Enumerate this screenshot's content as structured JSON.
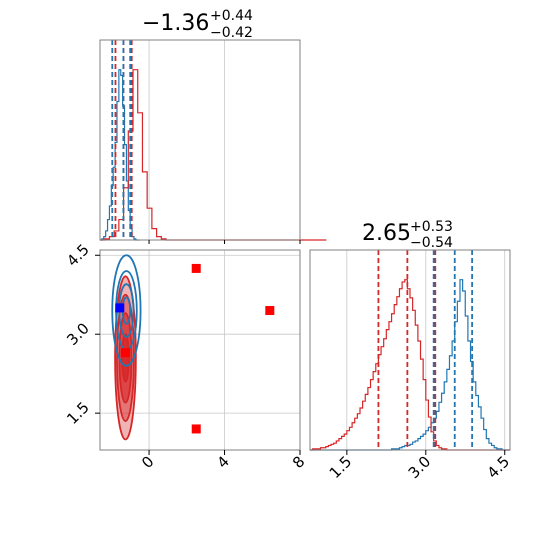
{
  "chart_data": [
    {
      "type": "histogram",
      "panel": "marginal-x",
      "title": "−1.36",
      "title_sup": "+0.44",
      "title_sub": "−0.42",
      "xlim": [
        -2.6,
        8
      ],
      "grid": true,
      "quantile_lines": {
        "red": [
          -1.78,
          -1.36,
          -0.92
        ],
        "blue": [
          -1.95,
          -1.36,
          -1.0
        ]
      },
      "series": [
        {
          "color": "#1f77b4",
          "bin_start": -2.6,
          "bin_width": 0.1,
          "counts": [
            0,
            1,
            3,
            8,
            18,
            30,
            48,
            64,
            86,
            122,
            150,
            145,
            118,
            84,
            52,
            26,
            10,
            3,
            1,
            0,
            0
          ]
        },
        {
          "color": "#d62728",
          "bin_start": -2.6,
          "bin_width": 0.25,
          "counts": [
            0,
            1,
            3,
            8,
            18,
            46,
            96,
            150,
            112,
            60,
            28,
            10,
            3,
            1,
            0,
            0,
            0,
            0,
            0,
            0,
            0,
            0,
            0,
            0,
            0,
            0,
            0,
            0,
            0,
            0,
            0,
            0,
            0,
            0,
            0,
            0,
            0,
            0,
            0,
            0,
            0,
            0,
            0,
            0,
            0,
            0,
            0,
            0
          ]
        }
      ]
    },
    {
      "type": "histogram",
      "panel": "marginal-y",
      "title": "2.65",
      "title_sup": "+0.53",
      "title_sub": "−0.54",
      "xlim": [
        0.8,
        4.6
      ],
      "xticks": [
        "1.5",
        "3.0",
        "4.5"
      ],
      "grid": true,
      "quantile_lines": {
        "red": [
          2.1,
          2.65,
          3.18
        ],
        "blue": [
          3.15,
          3.55,
          3.88
        ]
      },
      "series": [
        {
          "color": "#1f77b4",
          "bin_start": 0.8,
          "bin_width": 0.05,
          "counts": [
            0,
            0,
            0,
            0,
            0,
            0,
            0,
            0,
            0,
            0,
            0,
            0,
            0,
            0,
            0,
            0,
            0,
            0,
            0,
            0,
            0,
            0,
            0,
            0,
            0,
            0,
            0,
            0,
            0,
            0,
            0,
            1,
            1,
            1,
            2,
            3,
            4,
            4,
            5,
            7,
            8,
            10,
            12,
            14,
            17,
            20,
            24,
            28,
            34,
            42,
            50,
            60,
            71,
            83,
            96,
            113,
            131,
            150,
            140,
            118,
            96,
            78,
            60,
            48,
            38,
            28,
            18,
            10,
            6,
            4,
            2,
            1,
            1,
            0,
            0,
            0
          ]
        },
        {
          "color": "#d62728",
          "bin_start": 0.8,
          "bin_width": 0.05,
          "counts": [
            0,
            1,
            1,
            1,
            2,
            2,
            3,
            4,
            5,
            6,
            8,
            10,
            12,
            14,
            17,
            20,
            24,
            28,
            32,
            37,
            43,
            49,
            55,
            62,
            69,
            76,
            84,
            91,
            98,
            106,
            113,
            120,
            128,
            135,
            142,
            148,
            150,
            142,
            134,
            123,
            110,
            96,
            80,
            62,
            44,
            29,
            16,
            8,
            4,
            2,
            1,
            1,
            0,
            0,
            0,
            0,
            0,
            0,
            0,
            0,
            0,
            0,
            0,
            0,
            0,
            0,
            0,
            0,
            0,
            0,
            0,
            0,
            0,
            0,
            0,
            0
          ]
        }
      ]
    },
    {
      "type": "scatter",
      "panel": "joint",
      "xlim": [
        -2.6,
        8
      ],
      "ylim": [
        0.8,
        4.6
      ],
      "xticks": [
        "0",
        "4",
        "8"
      ],
      "yticks": [
        "1.5",
        "3.0",
        "4.5"
      ],
      "grid": true,
      "contours": [
        {
          "color": "#d62728",
          "center": [
            -1.25,
            2.55
          ],
          "radii": [
            [
              0.55,
              1.55
            ],
            [
              0.45,
              1.2
            ],
            [
              0.32,
              0.85
            ],
            [
              0.18,
              0.45
            ]
          ],
          "filled": true
        },
        {
          "color": "#1f77b4",
          "center": [
            -1.2,
            3.45
          ],
          "radii": [
            [
              0.75,
              1.05
            ],
            [
              0.55,
              0.75
            ],
            [
              0.38,
              0.5
            ],
            [
              0.2,
              0.25
            ]
          ],
          "filled": false
        }
      ],
      "markers": [
        {
          "color": "#0000ff",
          "x": -1.55,
          "y": 3.5
        },
        {
          "color": "#ff0000",
          "x": -1.25,
          "y": 2.65
        },
        {
          "color": "#ff0000",
          "x": 2.5,
          "y": 4.25
        },
        {
          "color": "#ff0000",
          "x": 6.4,
          "y": 3.45
        },
        {
          "color": "#ff0000",
          "x": 2.5,
          "y": 1.2
        }
      ]
    }
  ]
}
